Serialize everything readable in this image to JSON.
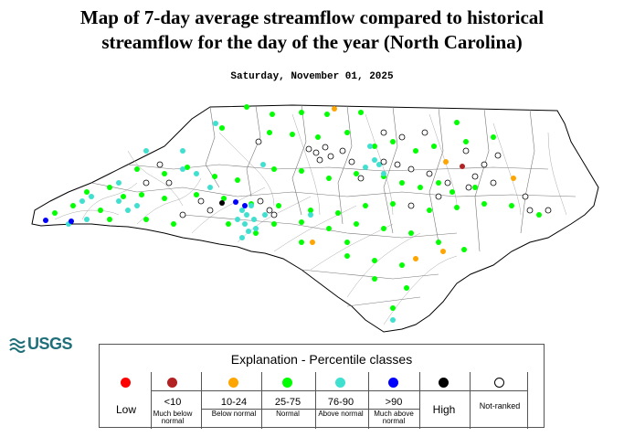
{
  "title_line1": "Map of 7-day average streamflow compared to historical",
  "title_line2": "streamflow for the day of the year (North Carolina)",
  "date": "Saturday, November 01, 2025",
  "logo_text": "USGS",
  "legend": {
    "title": "Explanation - Percentile classes",
    "classes": [
      {
        "label": "Low",
        "range": "",
        "desc": "",
        "color": "#ff0000"
      },
      {
        "label": "",
        "range": "<10",
        "desc": "Much below normal",
        "color": "#b22222"
      },
      {
        "label": "",
        "range": "10-24",
        "desc": "Below normal",
        "color": "#ffa500"
      },
      {
        "label": "",
        "range": "25-75",
        "desc": "Normal",
        "color": "#00ff00"
      },
      {
        "label": "",
        "range": "76-90",
        "desc": "Above normal",
        "color": "#40e0d0"
      },
      {
        "label": "",
        "range": ">90",
        "desc": "Much above normal",
        "color": "#0000ff"
      },
      {
        "label": "High",
        "range": "",
        "desc": "",
        "color": "#000000"
      },
      {
        "label": "Not-ranked",
        "range": "",
        "desc": "",
        "color": "#ffffff"
      }
    ]
  },
  "colors": {
    "low": "#ff0000",
    "much_below": "#b22222",
    "below": "#ffa500",
    "normal": "#00ff00",
    "above": "#40e0d0",
    "much_above": "#0000ff",
    "high": "#000000",
    "not_ranked": "#ffffff",
    "map_outline": "#000000",
    "county_lines": "#888888",
    "logo": "#1f6f7a"
  }
}
